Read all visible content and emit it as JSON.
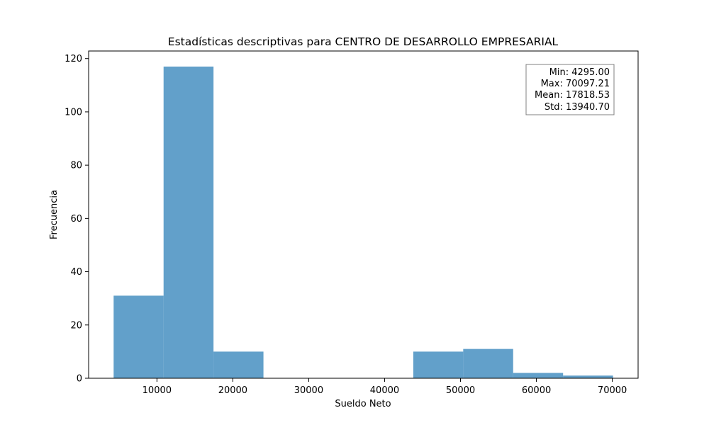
{
  "chart_data": {
    "type": "bar",
    "title": "Estadísticas descriptivas para CENTRO DE DESARROLLO EMPRESARIAL",
    "xlabel": "Sueldo Neto",
    "ylabel": "Frecuencia",
    "bin_edges": [
      4295.0,
      10875.221,
      17455.442,
      24035.663,
      30615.884,
      37196.105,
      43776.326,
      50356.547,
      56936.768,
      63516.989,
      70097.21
    ],
    "values": [
      31,
      117,
      10,
      0,
      0,
      0,
      10,
      11,
      2,
      1
    ],
    "xlim": [
      1000,
      73400
    ],
    "ylim": [
      0,
      122.85
    ],
    "xticks": [
      10000,
      20000,
      30000,
      40000,
      50000,
      60000,
      70000
    ],
    "yticks": [
      0,
      20,
      40,
      60,
      80,
      100,
      120
    ],
    "bar_color": "#1f77b4",
    "bar_opacity": 0.7,
    "grid": false,
    "stats_box": {
      "placement": "top-right",
      "lines": [
        "Min: 4295.00",
        "Max: 70097.21",
        "Mean: 17818.53",
        "Std: 13940.70"
      ]
    }
  }
}
